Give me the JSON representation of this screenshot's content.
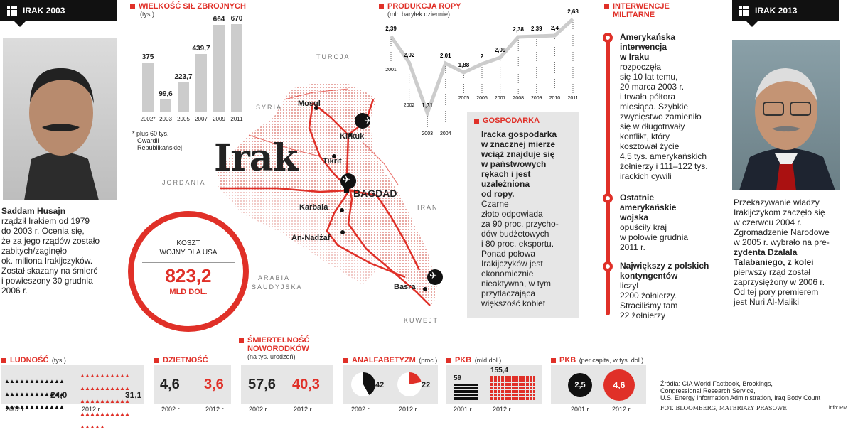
{
  "left_tag": "IRAK 2003",
  "right_tag": "IRAK 2013",
  "saddam": {
    "name": "Saddam Husajn",
    "lines": [
      "rządził Irakiem od 1979",
      "do 2003 r. Ocenia się,",
      "że za jego rządów zostało",
      "zabitych/zaginęło",
      "ok. miliona Irakijczyków.",
      "Został skazany na śmierć",
      "i powieszony 30 grudnia",
      "2006 r."
    ]
  },
  "talabani": {
    "lines": [
      "Przekazywanie władzy",
      "Irakijczykom zaczęło się",
      "w czerwcu 2004 r.",
      "Zgromadzenie Narodowe",
      "w 2005 r. wybrało na pre-",
      "zydenta Dżalala",
      "Talabaniego, z kolei",
      "pierwszy rząd został",
      "zaprzysiężony w 2006 r.",
      "Od tej pory premierem",
      "jest Nuri Al-Maliki"
    ]
  },
  "army": {
    "title": "WIELKOŚĆ SIŁ ZBROJNYCH",
    "unit": "(tys.)",
    "footnote": [
      "* plus 60 tys.",
      "Gwardii",
      "Republikańskiej"
    ]
  },
  "oil": {
    "title": "PRODUKCJA ROPY",
    "unit": "(mln baryłek dziennie)"
  },
  "chart_data": [
    {
      "type": "bar",
      "title": "WIELKOŚĆ SIŁ ZBROJNYCH",
      "unit": "(tys.)",
      "categories": [
        "2002*",
        "2003",
        "2005",
        "2007",
        "2009",
        "2011"
      ],
      "values": [
        375,
        99.6,
        223.7,
        439.7,
        664,
        670
      ],
      "labels": [
        "375",
        "99,6",
        "223,7",
        "439,7",
        "664",
        "670"
      ]
    },
    {
      "type": "line",
      "title": "PRODUKCJA ROPY",
      "unit": "(mln baryłek dziennie)",
      "x": [
        "2001",
        "2002",
        "2003",
        "2004",
        "2005",
        "2006",
        "2007",
        "2008",
        "2009",
        "2010",
        "2011"
      ],
      "values": [
        2.39,
        2.02,
        1.31,
        2.01,
        1.88,
        2.0,
        2.09,
        2.38,
        2.39,
        2.4,
        2.63
      ],
      "labels": [
        "2,39",
        "2,02",
        "1,31",
        "2,01",
        "1,88",
        "2",
        "2,09",
        "2,38",
        "2,39",
        "2,4",
        "2,63"
      ]
    }
  ],
  "map": {
    "title": "Irak",
    "countries": [
      "TURCJA",
      "SYRIA",
      "JORDANIA",
      "IRAN",
      "ARABIA",
      "SAUDYJSKA",
      "KUWEJT"
    ],
    "cities": [
      "Mosul",
      "Kirkuk",
      "Tikrit",
      "BAGDAD",
      "Karbala",
      "An-Nadżaf",
      "Basra"
    ]
  },
  "cost": {
    "label1": "KOSZT",
    "label2": "WOJNY DLA USA",
    "value": "823,2",
    "unit": "MLD DOL."
  },
  "economy": {
    "title": "GOSPODARKA",
    "bold_lines": [
      "Iracka gospodarka",
      "w znacznej mierze",
      "wciąż znajduje się",
      "w państwowych",
      "rękach i jest",
      "uzależniona",
      "od ropy."
    ],
    "text_lines": [
      "Czarne",
      "złoto odpowiada",
      "za 90 proc. przycho-",
      "dów budżetowych",
      "i 80 proc. eksportu.",
      "Ponad połowa",
      "Irakijczyków jest",
      "ekonomicznie",
      "nieaktywna, w tym",
      "przytłaczająca",
      "większość kobiet"
    ]
  },
  "interventions": {
    "title1": "INTERWENCJE",
    "title2": "MILITARNE",
    "items": [
      {
        "bold": [
          "Amerykańska",
          "interwencja",
          "w Iraku"
        ],
        "text": [
          "rozpoczęła",
          "się 10 lat temu,",
          "20 marca 2003 r.",
          "i trwała półtora",
          "miesiąca. Szybkie",
          "zwycięstwo zamieniło",
          "się w długotrwały",
          "konflikt, który",
          "kosztował życie",
          "4,5 tys. amerykańskich",
          "żołnierzy i 111–122 tys.",
          "irackich cywili"
        ]
      },
      {
        "bold": [
          "Ostatnie",
          "amerykańskie",
          "wojska"
        ],
        "text": [
          "opuściły kraj",
          "w połowie grudnia",
          "2011 r."
        ]
      },
      {
        "bold": [
          "Największy z polskich",
          "kontyngentów"
        ],
        "text": [
          "liczył",
          "2200 żołnierzy.",
          "Straciliśmy tam",
          "22 żołnierzy"
        ]
      }
    ]
  },
  "stats": {
    "population": {
      "title": "LUDNOŚĆ",
      "unit": "(tys.)",
      "v2002": "24,0",
      "v2012": "31,1",
      "y1": "2002 r.",
      "y2": "2012 r."
    },
    "fertility": {
      "title": "DZIETNOŚĆ",
      "v2002": "4,6",
      "v2012": "3,6",
      "y1": "2002 r.",
      "y2": "2012 r."
    },
    "infant": {
      "title1": "ŚMIERTELNOŚĆ",
      "title2": "NOWORODKÓW",
      "unit": "(na tys. urodzeń)",
      "v2002": "57,6",
      "v2012": "40,3",
      "y1": "2002 r.",
      "y2": "2012 r."
    },
    "illiteracy": {
      "title": "ANALFABETYZM",
      "unit": "(proc.)",
      "v2002": "42",
      "v2012": "22",
      "y1": "2002 r.",
      "y2": "2012 r.",
      "frac2002": 0.42,
      "frac2012": 0.22
    },
    "gdp": {
      "title": "PKB",
      "unit": "(mld dol.)",
      "v2001": "59",
      "v2012": "155,4",
      "y1": "2001 r.",
      "y2": "2012 r."
    },
    "gdppc": {
      "title": "PKB",
      "unit": "(per capita, w tys. dol.)",
      "v2001": "2,5",
      "v2012": "4,6",
      "y1": "2001 r.",
      "y2": "2012 r."
    }
  },
  "sources": [
    "Źródła: CIA World Factbook, Brookings,",
    "Congressional Research Service,",
    "U.S. Energy Information Administration, Iraq Body Count"
  ],
  "credit": "FOT. BLOOMBERG, MATERIAŁY PRASOWE",
  "info": "info: RM",
  "colors": {
    "accent": "#e03028",
    "panel": "#e6e6e6",
    "grey": "#cccccc"
  }
}
